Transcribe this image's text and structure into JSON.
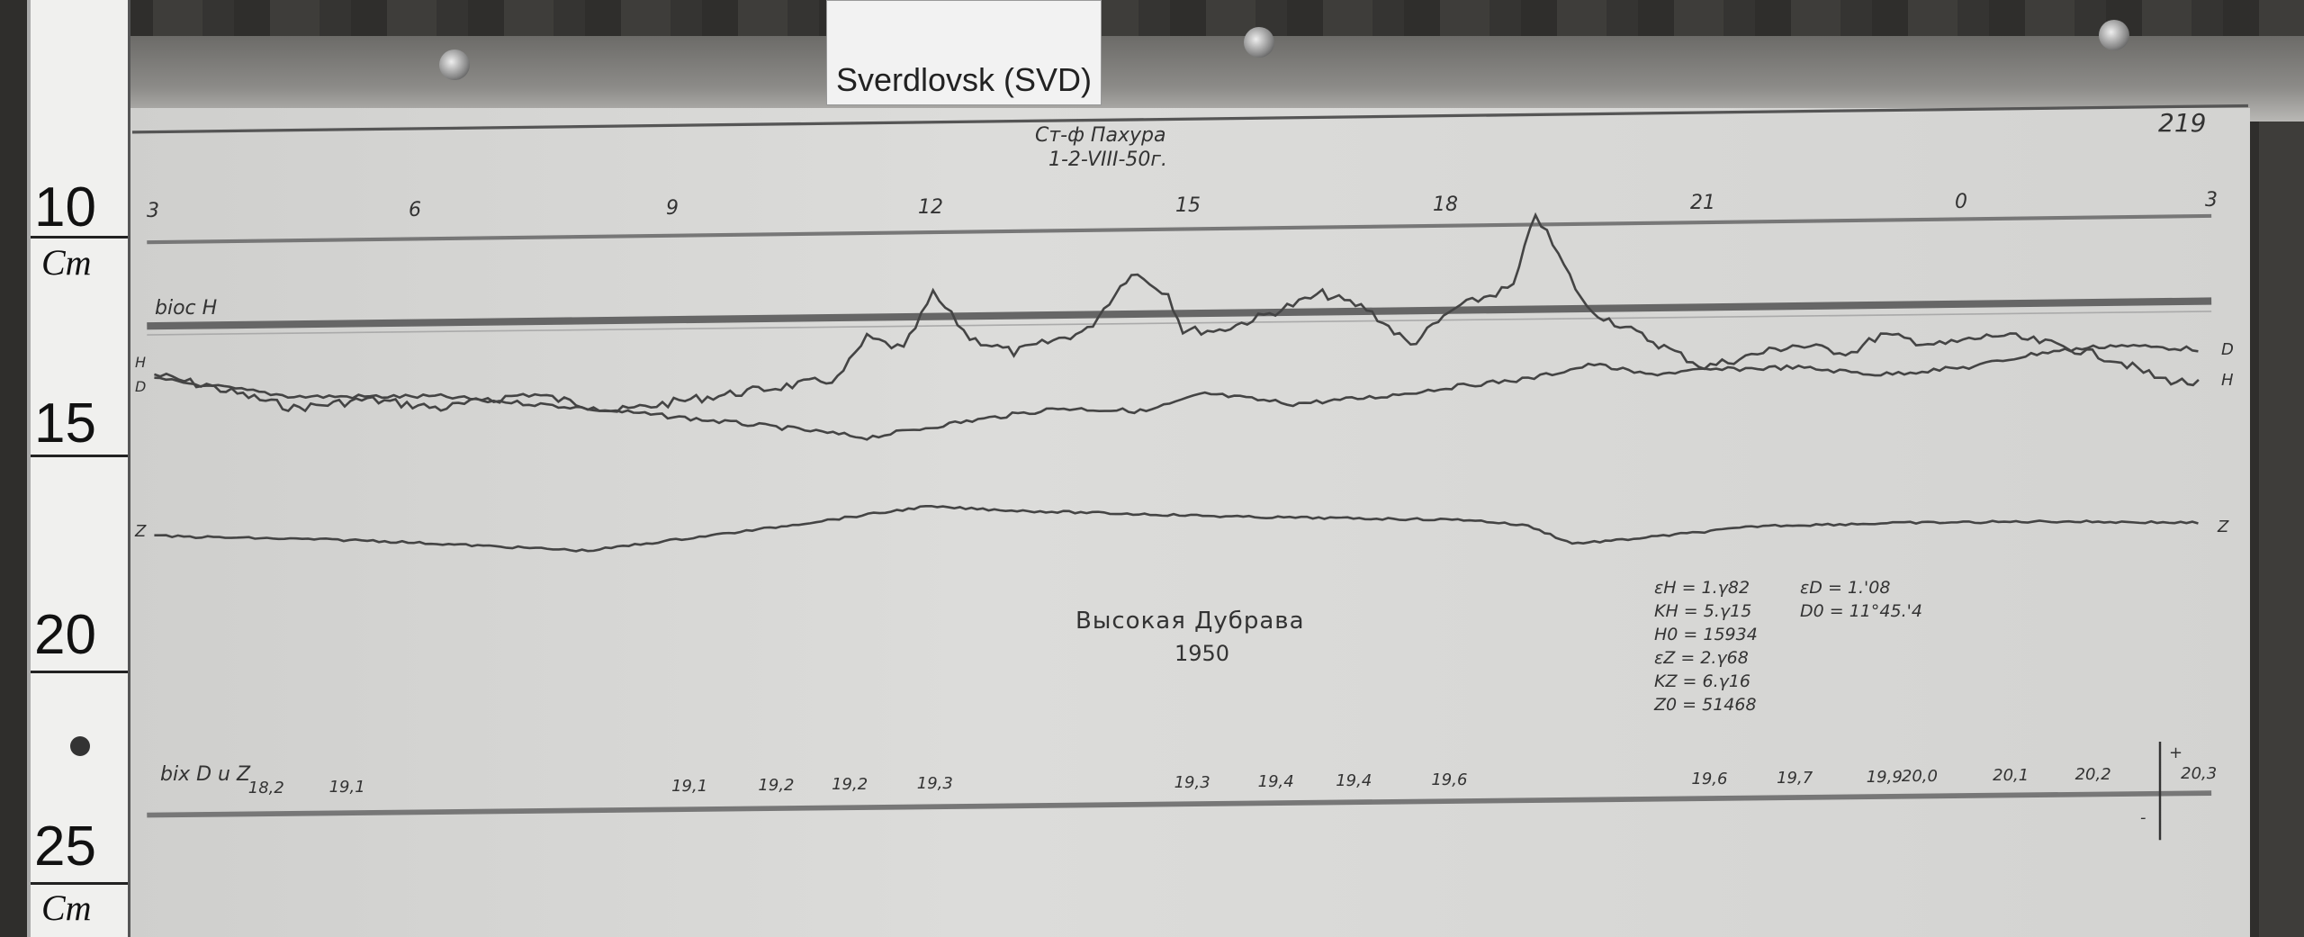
{
  "label_card": {
    "text": "Sverdlovsk (SVD)"
  },
  "ruler": {
    "numbers": [
      "10",
      "15",
      "20",
      "25"
    ],
    "unit": "Cm",
    "unit_bottom": "Cm"
  },
  "sheet": {
    "header_line1": "Ст-ф Пахура",
    "header_line2": "1-2-VIII-50г.",
    "page_number": "219",
    "hour_labels": [
      "3",
      "6",
      "9",
      "12",
      "15",
      "18",
      "21",
      "0",
      "3"
    ],
    "baseline_h_label": "bioc H",
    "trace_labels": {
      "h_left": "H",
      "d_left": "D",
      "d_right": "D",
      "h_right": "H",
      "z_left": "Z",
      "z_right": "Z"
    },
    "station": "Высокая Дубрава",
    "year": "1950",
    "constants": [
      "εH = 1.γ82",
      "KH = 5.γ15",
      "H0 = 15934",
      "εZ = 2.γ68",
      "KZ = 6.γ16",
      "Z0 = 51468"
    ],
    "constants_right": [
      "εD = 1.'08",
      "D0 = 11°45.'4"
    ],
    "baseline_bottom_label": "bix D u Z",
    "baseline_bottom_values": [
      "18,2",
      "19,1",
      "19,1",
      "19,2",
      "19,2",
      "19,3",
      "19,3",
      "19,4",
      "19,4",
      "19,6",
      "19,6",
      "19,7",
      "19,9",
      "20,0",
      "20,1",
      "20,2",
      "20,3"
    ],
    "scale_marks": {
      "plus": "+",
      "minus": "-"
    }
  }
}
